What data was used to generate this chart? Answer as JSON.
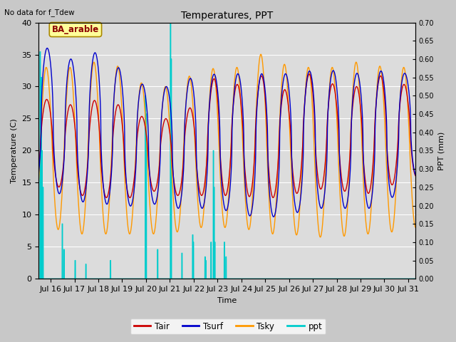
{
  "title": "Temperatures, PPT",
  "subtitle": "No data for f_Tdew",
  "annotation": "BA_arable",
  "xlabel": "Time",
  "ylabel_left": "Temperature (C)",
  "ylabel_right": "PPT (mm)",
  "xlim_days": [
    15.5,
    31.3
  ],
  "ylim_left": [
    0,
    40
  ],
  "ylim_right": [
    0,
    0.7
  ],
  "yticks_left": [
    0,
    5,
    10,
    15,
    20,
    25,
    30,
    35,
    40
  ],
  "yticks_right": [
    0.0,
    0.05,
    0.1,
    0.15,
    0.2,
    0.25,
    0.3,
    0.35,
    0.4,
    0.45,
    0.5,
    0.55,
    0.6,
    0.65,
    0.7
  ],
  "xtick_labels": [
    "Jul 16",
    "Jul 17",
    "Jul 18",
    "Jul 19",
    "Jul 20",
    "Jul 21",
    "Jul 22",
    "Jul 23",
    "Jul 24",
    "Jul 25",
    "Jul 26",
    "Jul 27",
    "Jul 28",
    "Jul 29",
    "Jul 30",
    "Jul 31"
  ],
  "xtick_positions": [
    16,
    17,
    18,
    19,
    20,
    21,
    22,
    23,
    24,
    25,
    26,
    27,
    28,
    29,
    30,
    31
  ],
  "color_Tair": "#cc0000",
  "color_Tsurf": "#0000cc",
  "color_Tsky": "#ff9900",
  "color_ppt": "#00cccc",
  "plot_bg_color": "#dcdcdc",
  "fig_bg_color": "#c8c8c8",
  "annotation_bg": "#ffff99",
  "annotation_border": "#aa8800"
}
